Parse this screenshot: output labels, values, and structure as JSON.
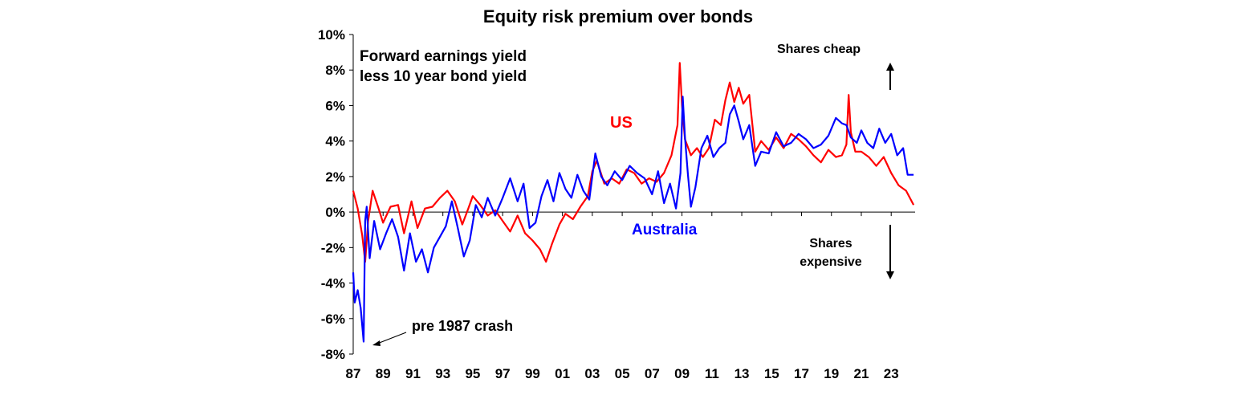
{
  "chart_data": {
    "type": "line",
    "title": "Equity risk premium over bonds",
    "subtitle_lines": [
      "Forward earnings yield",
      "less 10 year bond yield"
    ],
    "xlabel": "",
    "ylabel": "",
    "xlim": [
      1987.0,
      2024.6
    ],
    "ylim": [
      -8,
      10
    ],
    "y_ticks": [
      10,
      8,
      6,
      4,
      2,
      0,
      -2,
      -4,
      -6,
      -8
    ],
    "y_tick_labels": [
      "10%",
      "8%",
      "6%",
      "4%",
      "2%",
      "0%",
      "-2%",
      "-4%",
      "-6%",
      "-8%"
    ],
    "x_ticks": [
      1987,
      1989,
      1991,
      1993,
      1995,
      1997,
      1999,
      2001,
      2003,
      2005,
      2007,
      2009,
      2011,
      2013,
      2015,
      2017,
      2019,
      2021,
      2023
    ],
    "x_tick_labels": [
      "87",
      "89",
      "91",
      "93",
      "95",
      "97",
      "99",
      "01",
      "03",
      "05",
      "07",
      "09",
      "11",
      "13",
      "15",
      "17",
      "19",
      "21",
      "23"
    ],
    "grid": false,
    "series": [
      {
        "name": "US",
        "color": "#ff0000",
        "x": [
          1987.0,
          1987.3,
          1987.6,
          1987.8,
          1988.0,
          1988.3,
          1988.7,
          1989.0,
          1989.5,
          1990.0,
          1990.4,
          1990.9,
          1991.3,
          1991.8,
          1992.3,
          1992.8,
          1993.3,
          1993.8,
          1994.3,
          1994.7,
          1995.0,
          1995.5,
          1996.0,
          1996.5,
          1997.0,
          1997.5,
          1998.0,
          1998.5,
          1999.0,
          1999.5,
          1999.9,
          2000.3,
          2000.8,
          2001.2,
          2001.7,
          2002.2,
          2002.7,
          2003.0,
          2003.3,
          2003.8,
          2004.3,
          2004.8,
          2005.3,
          2005.8,
          2006.3,
          2006.8,
          2007.3,
          2007.8,
          2008.3,
          2008.7,
          2008.85,
          2009.0,
          2009.2,
          2009.6,
          2010.0,
          2010.4,
          2010.8,
          2011.2,
          2011.6,
          2011.9,
          2012.2,
          2012.5,
          2012.8,
          2013.1,
          2013.5,
          2013.9,
          2014.3,
          2014.8,
          2015.3,
          2015.8,
          2016.3,
          2016.8,
          2017.3,
          2017.8,
          2018.3,
          2018.8,
          2019.3,
          2019.7,
          2020.0,
          2020.15,
          2020.3,
          2020.6,
          2021.0,
          2021.5,
          2022.0,
          2022.5,
          2023.0,
          2023.5,
          2024.0,
          2024.5
        ],
        "values": [
          1.2,
          0.2,
          -1.3,
          -2.8,
          -0.5,
          1.2,
          0.2,
          -0.6,
          0.3,
          0.4,
          -1.2,
          0.6,
          -0.9,
          0.2,
          0.3,
          0.8,
          1.2,
          0.6,
          -0.7,
          0.2,
          0.9,
          0.4,
          -0.2,
          0.1,
          -0.5,
          -1.1,
          -0.2,
          -1.2,
          -1.6,
          -2.1,
          -2.8,
          -1.8,
          -0.7,
          -0.1,
          -0.4,
          0.3,
          0.9,
          2.3,
          2.9,
          1.6,
          1.9,
          1.6,
          2.4,
          2.2,
          1.6,
          1.9,
          1.7,
          2.2,
          3.2,
          4.9,
          8.4,
          6.0,
          4.1,
          3.2,
          3.6,
          3.1,
          3.6,
          5.2,
          4.9,
          6.3,
          7.3,
          6.2,
          7.0,
          6.1,
          6.6,
          3.4,
          4.0,
          3.5,
          4.2,
          3.6,
          4.4,
          4.1,
          3.7,
          3.2,
          2.8,
          3.5,
          3.1,
          3.2,
          3.8,
          6.6,
          4.5,
          3.4,
          3.4,
          3.1,
          2.6,
          3.1,
          2.2,
          1.5,
          1.2,
          0.4
        ]
      },
      {
        "name": "Australia",
        "color": "#0000ff",
        "x": [
          1987.0,
          1987.1,
          1987.3,
          1987.5,
          1987.7,
          1987.8,
          1987.9,
          1988.1,
          1988.4,
          1988.8,
          1989.2,
          1989.6,
          1990.0,
          1990.4,
          1990.8,
          1991.2,
          1991.6,
          1992.0,
          1992.4,
          1992.8,
          1993.2,
          1993.6,
          1994.0,
          1994.4,
          1994.8,
          1995.2,
          1995.6,
          1996.0,
          1996.5,
          1997.0,
          1997.5,
          1998.0,
          1998.4,
          1998.8,
          1999.2,
          1999.6,
          2000.0,
          2000.4,
          2000.8,
          2001.2,
          2001.6,
          2002.0,
          2002.4,
          2002.8,
          2003.2,
          2003.6,
          2004.0,
          2004.5,
          2005.0,
          2005.5,
          2006.0,
          2006.5,
          2007.0,
          2007.4,
          2007.8,
          2008.2,
          2008.6,
          2008.9,
          2009.05,
          2009.2,
          2009.4,
          2009.6,
          2009.9,
          2010.3,
          2010.7,
          2011.1,
          2011.5,
          2011.9,
          2012.2,
          2012.5,
          2012.8,
          2013.1,
          2013.5,
          2013.9,
          2014.3,
          2014.8,
          2015.3,
          2015.8,
          2016.3,
          2016.8,
          2017.3,
          2017.8,
          2018.3,
          2018.8,
          2019.3,
          2019.7,
          2020.0,
          2020.3,
          2020.7,
          2021.0,
          2021.4,
          2021.8,
          2022.2,
          2022.6,
          2023.0,
          2023.4,
          2023.8,
          2024.1,
          2024.5
        ],
        "values": [
          -3.4,
          -5.1,
          -4.4,
          -5.4,
          -7.3,
          -0.5,
          0.3,
          -2.6,
          -0.5,
          -2.1,
          -1.2,
          -0.4,
          -1.4,
          -3.3,
          -1.2,
          -2.8,
          -2.1,
          -3.4,
          -2.0,
          -1.4,
          -0.8,
          0.6,
          -0.9,
          -2.5,
          -1.6,
          0.4,
          -0.3,
          0.8,
          -0.2,
          0.8,
          1.9,
          0.6,
          1.6,
          -0.9,
          -0.6,
          0.9,
          1.8,
          0.6,
          2.2,
          1.3,
          0.8,
          2.1,
          1.2,
          0.7,
          3.3,
          2.0,
          1.5,
          2.3,
          1.8,
          2.6,
          2.2,
          1.9,
          1.0,
          2.3,
          0.5,
          1.6,
          0.2,
          2.2,
          6.5,
          4.2,
          2.1,
          0.3,
          1.4,
          3.6,
          4.3,
          3.1,
          3.6,
          3.9,
          5.5,
          6.0,
          5.1,
          4.1,
          4.9,
          2.6,
          3.4,
          3.3,
          4.5,
          3.7,
          3.9,
          4.4,
          4.1,
          3.6,
          3.8,
          4.3,
          5.3,
          5.0,
          4.9,
          4.2,
          3.9,
          4.6,
          3.9,
          3.6,
          4.7,
          3.9,
          4.4,
          3.2,
          3.6,
          2.1,
          2.1
        ]
      }
    ],
    "annotations": {
      "us_label": "US",
      "australia_label": "Australia",
      "shares_cheap": "Shares cheap",
      "shares_expensive_line1": "Shares",
      "shares_expensive_line2": "expensive",
      "crash_note": "pre 1987 crash"
    }
  }
}
